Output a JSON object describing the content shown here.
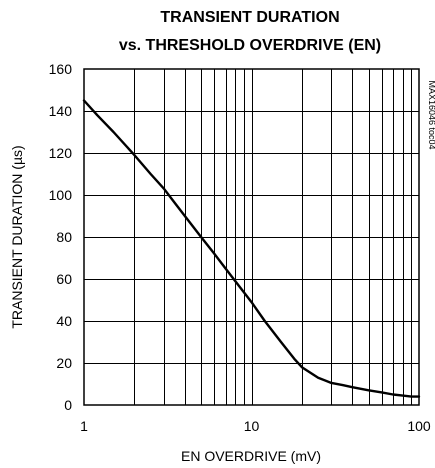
{
  "chart_data": {
    "type": "line",
    "title": [
      "TRANSIENT DURATION",
      "vs. THRESHOLD OVERDRIVE (EN)"
    ],
    "xlabel": "EN OVERDRIVE (mV)",
    "ylabel": "TRANSIENT DURATION (µs)",
    "figure_code": "MAX16046 toc04",
    "xscale": "log",
    "xlim": [
      1,
      100
    ],
    "ylim": [
      0,
      160
    ],
    "grid": true,
    "legend": "none",
    "x_ticks": [
      1,
      10,
      100
    ],
    "x_tick_labels": [
      "1",
      "10",
      "100"
    ],
    "y_ticks": [
      0,
      20,
      40,
      60,
      80,
      100,
      120,
      140,
      160
    ],
    "y_tick_labels": [
      "0",
      "20",
      "40",
      "60",
      "80",
      "100",
      "120",
      "140",
      "160"
    ],
    "series": [
      {
        "x": [
          1,
          1.2,
          1.5,
          2,
          2.5,
          3,
          3.5,
          4,
          5,
          6,
          7,
          8,
          10,
          12,
          15,
          18,
          20,
          25,
          30,
          35,
          40,
          50,
          60,
          70,
          80,
          90,
          100
        ],
        "y": [
          145,
          138,
          130,
          119,
          110,
          103,
          96,
          90,
          80,
          72,
          65,
          59,
          49,
          40,
          30,
          22,
          18,
          13,
          10.5,
          9.5,
          8.5,
          7,
          6,
          5,
          4.5,
          4,
          4
        ]
      }
    ]
  }
}
